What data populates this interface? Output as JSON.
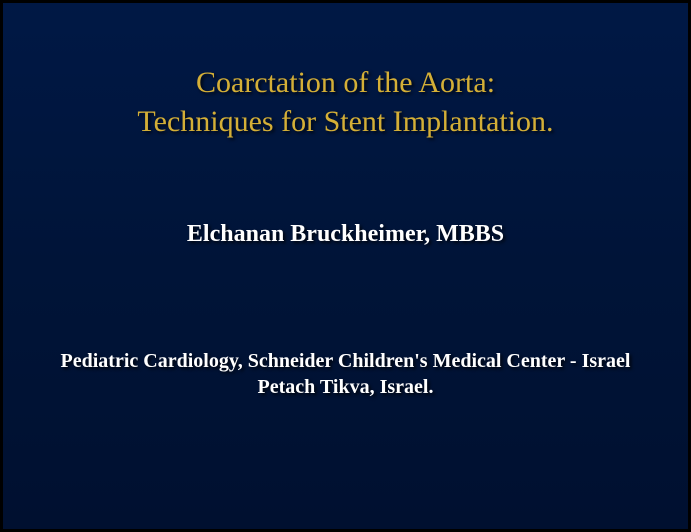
{
  "slide": {
    "type": "title-slide",
    "background_color": "#001438",
    "background_gradient": [
      "#001845",
      "#001438",
      "#001030"
    ],
    "border_color": "#000000",
    "border_width": 3,
    "title": {
      "line1": "Coarctation of the Aorta:",
      "line2": "Techniques for Stent Implantation.",
      "color": "#d4af37",
      "fontsize": 30,
      "font_weight": "normal",
      "text_shadow": "2px 2px 3px rgba(0,0,0,0.8)"
    },
    "author": {
      "name": "Elchanan Bruckheimer, MBBS",
      "color": "#ffffff",
      "fontsize": 24,
      "font_weight": "bold",
      "text_shadow": "2px 2px 3px rgba(0,0,0,0.8)"
    },
    "affiliation": {
      "line1": "Pediatric Cardiology, Schneider Children's Medical Center - Israel",
      "line2": "Petach Tikva, Israel.",
      "color": "#ffffff",
      "fontsize": 20,
      "font_weight": "bold",
      "text_shadow": "2px 2px 3px rgba(0,0,0,0.8)"
    },
    "font_family": "Times New Roman"
  }
}
